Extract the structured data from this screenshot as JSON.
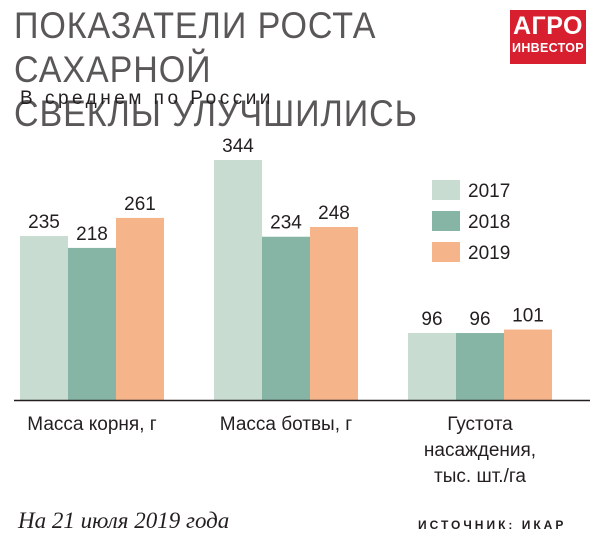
{
  "header": {
    "title_line1": "ПОКАЗАТЕЛИ РОСТА САХАРНОЙ",
    "title_line2": "СВЕКЛЫ УЛУЧШИЛИСЬ",
    "subtitle": "В среднем по России"
  },
  "logo": {
    "line1": "АГРО",
    "line2": "ИНВЕСТОР"
  },
  "footer": {
    "note": "На 21 июля 2019 года",
    "source": "ИСТОЧНИК: ИКАР"
  },
  "colors": {
    "s2017": "#c8dcd2",
    "s2018": "#87b5a5",
    "s2019": "#f6b48b",
    "axis": "#231f20"
  },
  "chart_data": {
    "type": "bar",
    "categories": [
      [
        "Масса корня, г"
      ],
      [
        "Масса ботвы, г"
      ],
      [
        "Густота",
        "насаждения,",
        "тыс. шт./га"
      ]
    ],
    "series": [
      {
        "name": "2017",
        "values": [
          235,
          344,
          96
        ]
      },
      {
        "name": "2018",
        "values": [
          218,
          234,
          96
        ]
      },
      {
        "name": "2019",
        "values": [
          261,
          248,
          101
        ]
      }
    ],
    "legend_position": "right",
    "grid": false
  }
}
